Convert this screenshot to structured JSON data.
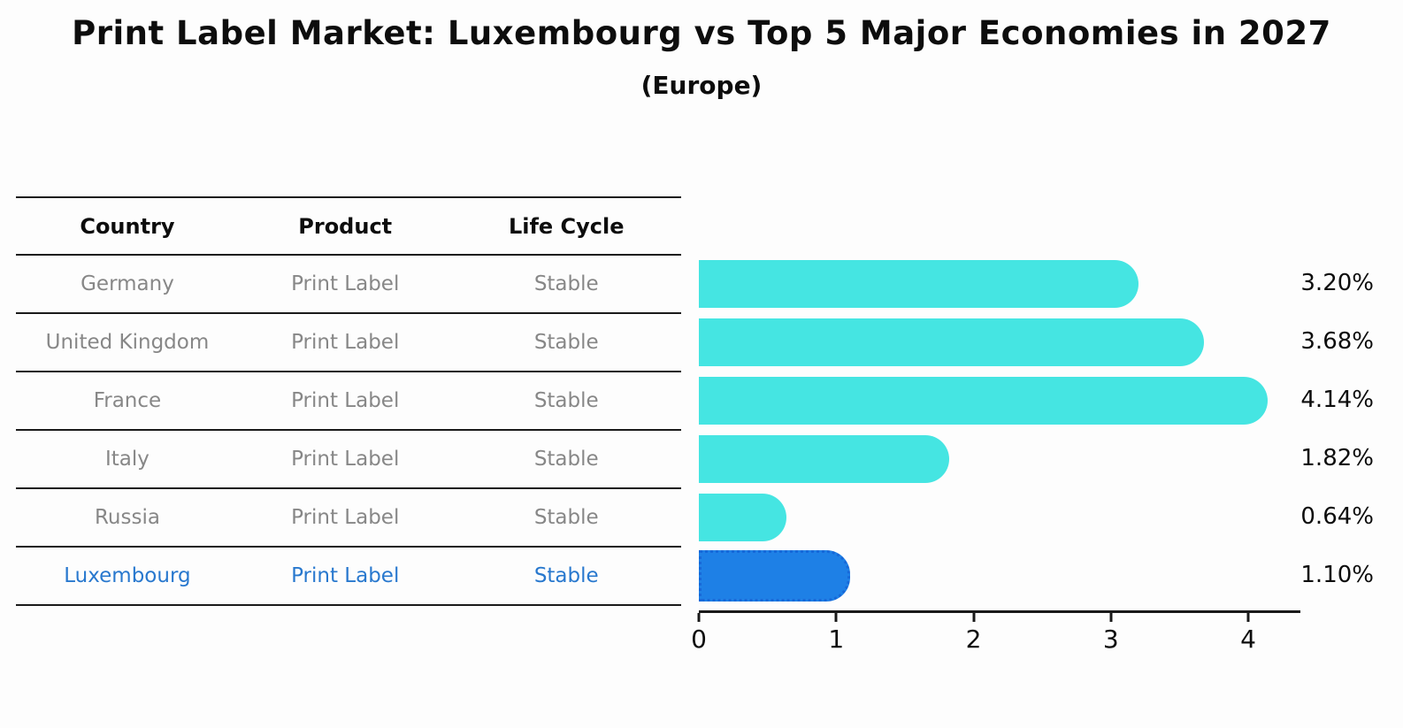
{
  "title": "Print Label Market: Luxembourg vs Top 5 Major Economies in 2027",
  "subtitle": "(Europe)",
  "table": {
    "headers": [
      "Country",
      "Product",
      "Life Cycle"
    ],
    "highlight_text_color": "#2878ce",
    "rows": [
      {
        "country": "Germany",
        "product": "Print Label",
        "life_cycle": "Stable",
        "highlight": false
      },
      {
        "country": "United Kingdom",
        "product": "Print Label",
        "life_cycle": "Stable",
        "highlight": false
      },
      {
        "country": "France",
        "product": "Print Label",
        "life_cycle": "Stable",
        "highlight": false
      },
      {
        "country": "Italy",
        "product": "Print Label",
        "life_cycle": "Stable",
        "highlight": false
      },
      {
        "country": "Russia",
        "product": "Print Label",
        "life_cycle": "Stable",
        "highlight": false
      },
      {
        "country": "Luxembourg",
        "product": "Print Label",
        "life_cycle": "Stable",
        "highlight": true
      }
    ]
  },
  "chart_data": {
    "type": "bar",
    "orientation": "horizontal",
    "title": "Print Label Market: Luxembourg vs Top 5 Major Economies in 2027 (Europe)",
    "categories": [
      "Germany",
      "United Kingdom",
      "France",
      "Italy",
      "Russia",
      "Luxembourg"
    ],
    "values": [
      3.2,
      3.68,
      4.14,
      1.82,
      0.64,
      1.1
    ],
    "value_labels": [
      "3.20%",
      "3.68%",
      "4.14%",
      "1.82%",
      "0.64%",
      "1.10%"
    ],
    "x_ticks": [
      0,
      1,
      2,
      3,
      4
    ],
    "xlim": [
      0,
      4.38
    ],
    "grid": false,
    "legend": false,
    "bar_color": "#45e5e2",
    "highlight_index": 5,
    "highlight_bar_color": "#1e80e6",
    "highlight_border_color": "#1668d8"
  }
}
